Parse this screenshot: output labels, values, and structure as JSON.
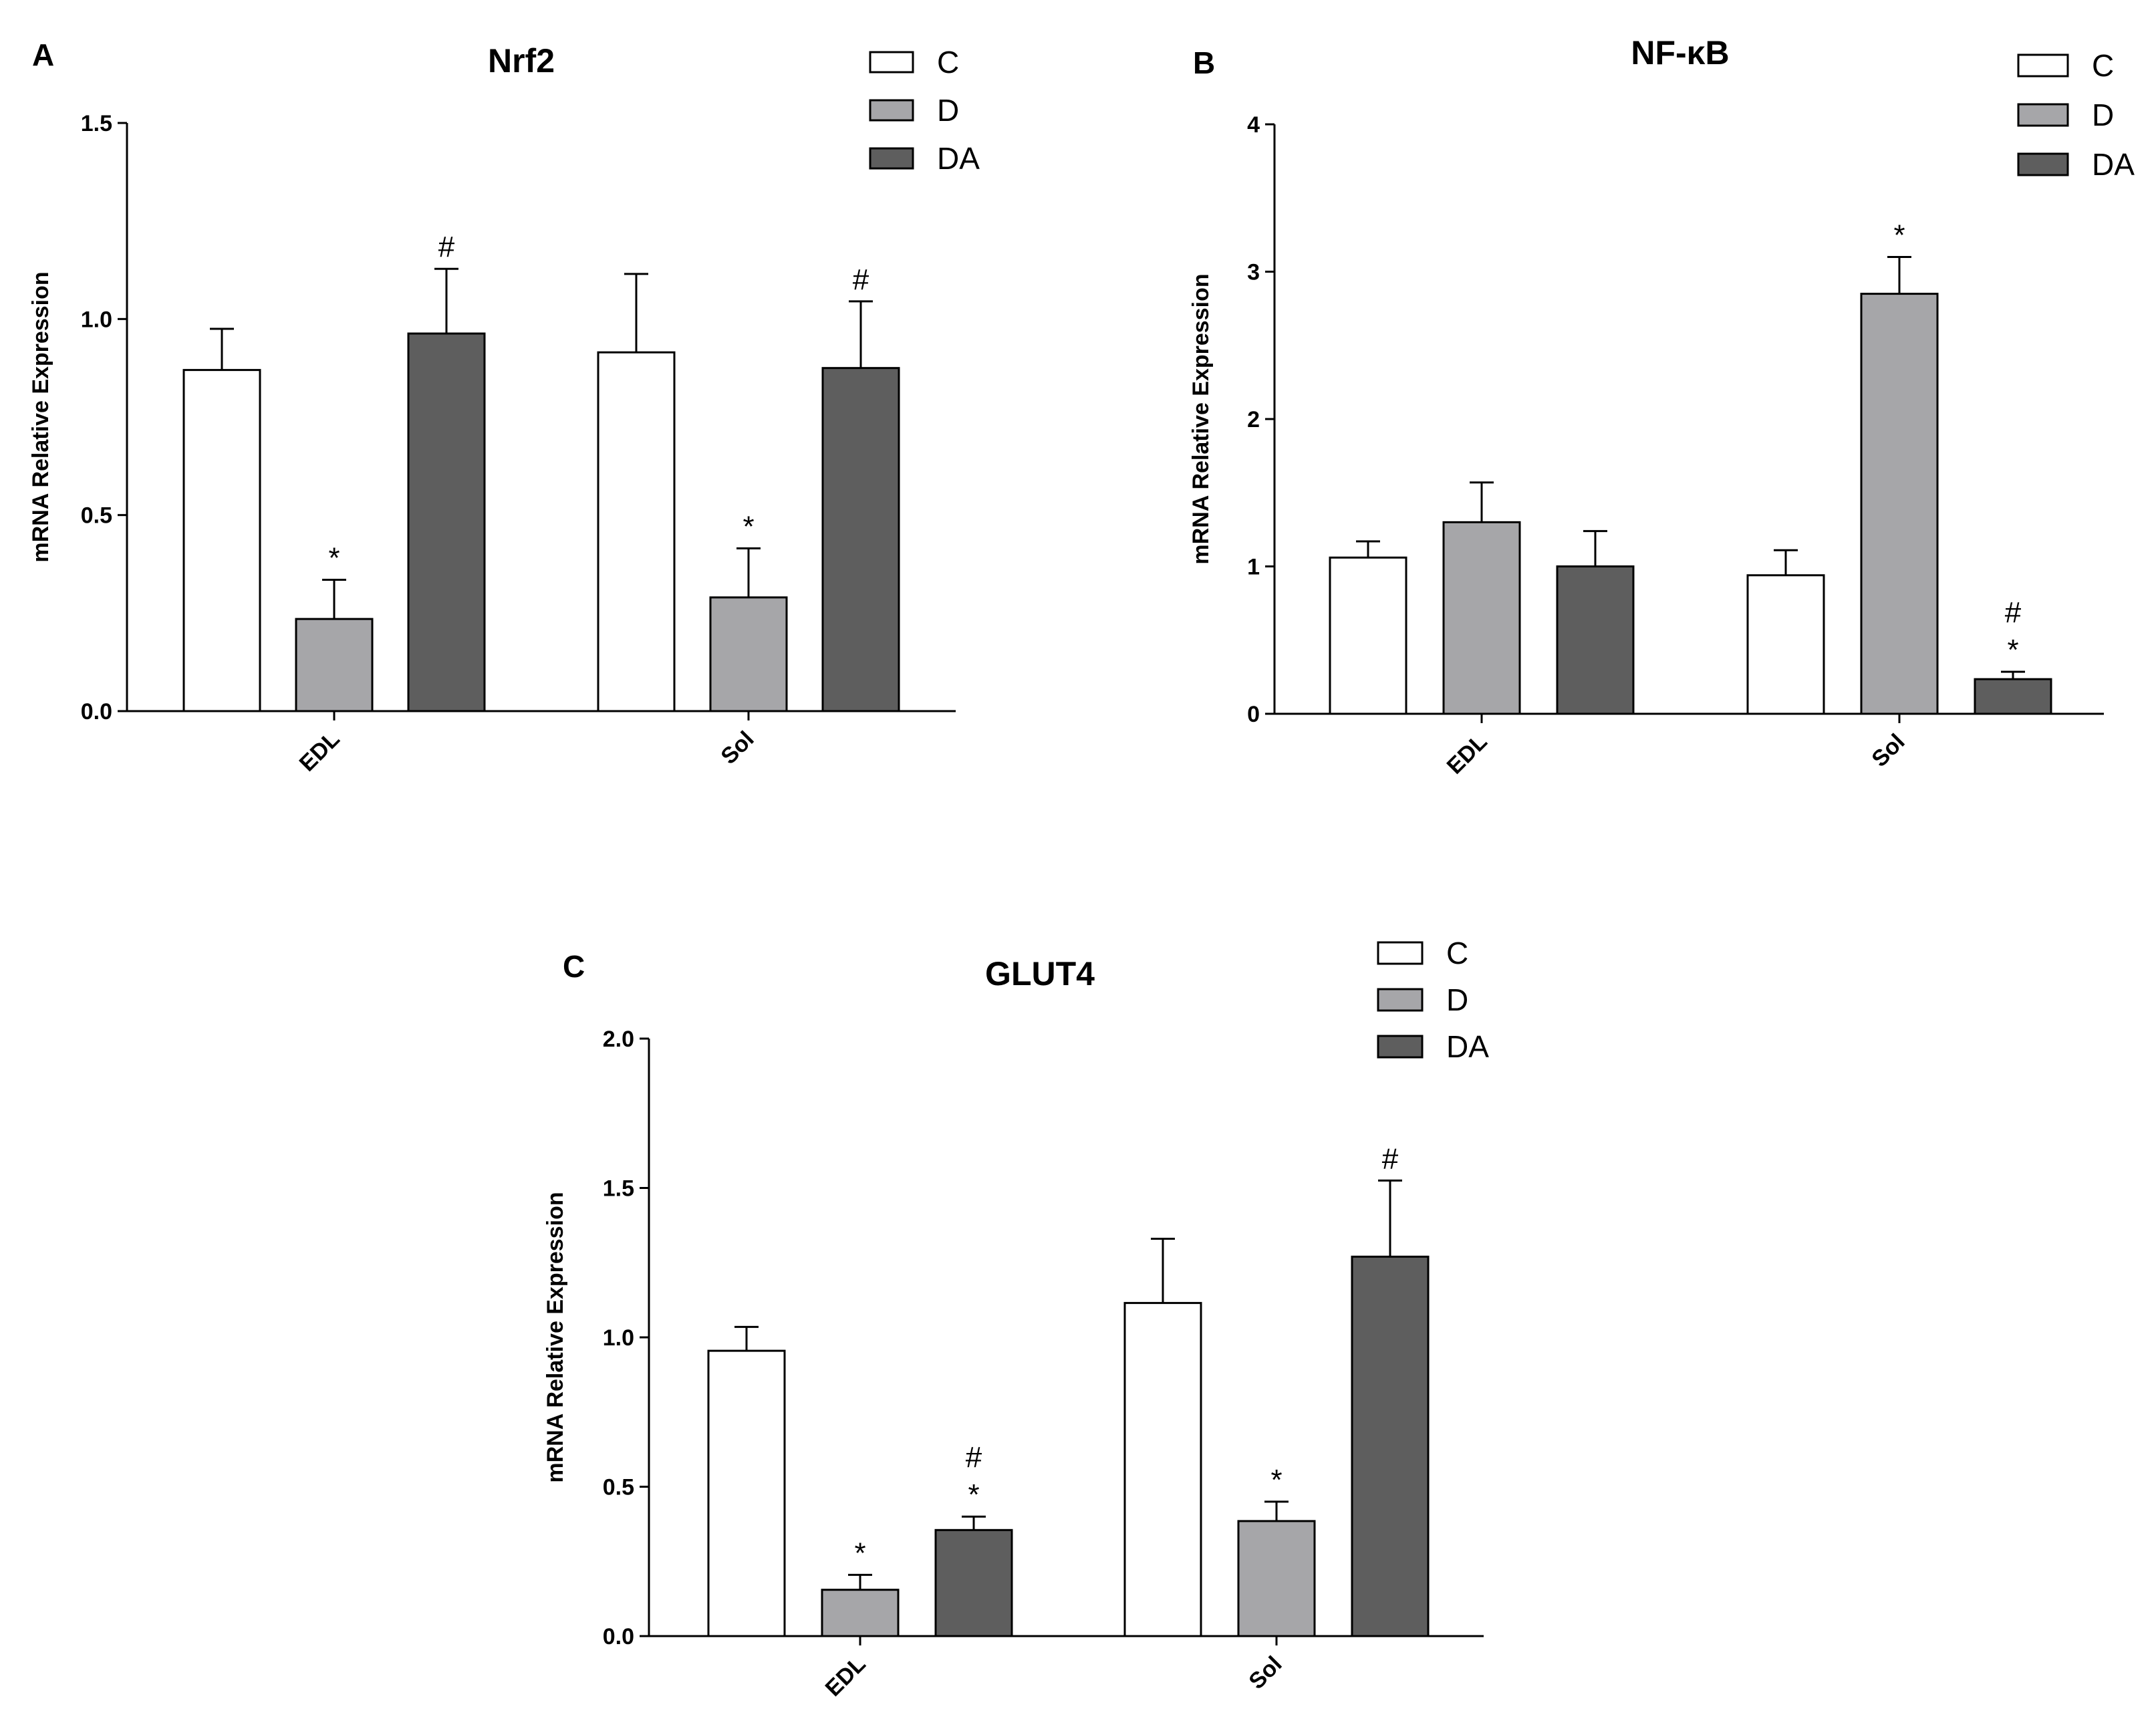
{
  "colors": {
    "C": "#ffffff",
    "D": "#a6a6a9",
    "DA": "#5e5e5e",
    "axis": "#000000"
  },
  "chart_data": [
    {
      "panel": "A",
      "type": "bar",
      "title": "Nrf2",
      "ylabel": "mRNA Relative Expression",
      "xlabel": "",
      "categories": [
        "EDL",
        "Sol"
      ],
      "ylim": [
        0,
        1.5
      ],
      "yticks": [
        0,
        0.5,
        1.0,
        1.5
      ],
      "ytick_labels": [
        "0.0",
        "0.5",
        "1.0",
        "1.5"
      ],
      "legend": [
        "C",
        "D",
        "DA"
      ],
      "series": [
        {
          "name": "C",
          "values": [
            0.87,
            0.915
          ],
          "errors": [
            0.105,
            0.2
          ],
          "annotations": [
            [],
            []
          ]
        },
        {
          "name": "D",
          "values": [
            0.235,
            0.29
          ],
          "errors": [
            0.1,
            0.125
          ],
          "annotations": [
            [
              "*"
            ],
            [
              "*"
            ]
          ]
        },
        {
          "name": "DA",
          "values": [
            0.963,
            0.875
          ],
          "errors": [
            0.165,
            0.17
          ],
          "annotations": [
            [
              "#"
            ],
            [
              "#"
            ]
          ]
        }
      ]
    },
    {
      "panel": "B",
      "type": "bar",
      "title": "NF-κB",
      "ylabel": "mRNA Relative Expression",
      "xlabel": "",
      "categories": [
        "EDL",
        "Sol"
      ],
      "ylim": [
        0,
        4
      ],
      "yticks": [
        0,
        1,
        2,
        3,
        4
      ],
      "ytick_labels": [
        "0",
        "1",
        "2",
        "3",
        "4"
      ],
      "legend": [
        "C",
        "D",
        "DA"
      ],
      "series": [
        {
          "name": "C",
          "values": [
            1.06,
            0.94
          ],
          "errors": [
            0.11,
            0.17
          ],
          "annotations": [
            [],
            []
          ]
        },
        {
          "name": "D",
          "values": [
            1.3,
            2.85
          ],
          "errors": [
            0.27,
            0.25
          ],
          "annotations": [
            [],
            [
              "*"
            ]
          ]
        },
        {
          "name": "DA",
          "values": [
            1.0,
            0.235
          ],
          "errors": [
            0.24,
            0.05
          ],
          "annotations": [
            [],
            [
              "*",
              "#"
            ]
          ]
        }
      ]
    },
    {
      "panel": "C",
      "type": "bar",
      "title": "GLUT4",
      "ylabel": "mRNA Relative Expression",
      "xlabel": "",
      "categories": [
        "EDL",
        "Sol"
      ],
      "ylim": [
        0,
        2.0
      ],
      "yticks": [
        0,
        0.5,
        1.0,
        1.5,
        2.0
      ],
      "ytick_labels": [
        "0.0",
        "0.5",
        "1.0",
        "1.5",
        "2.0"
      ],
      "legend": [
        "C",
        "D",
        "DA"
      ],
      "series": [
        {
          "name": "C",
          "values": [
            0.955,
            1.115
          ],
          "errors": [
            0.08,
            0.215
          ],
          "annotations": [
            [],
            []
          ]
        },
        {
          "name": "D",
          "values": [
            0.155,
            0.385
          ],
          "errors": [
            0.05,
            0.065
          ],
          "annotations": [
            [
              "*"
            ],
            [
              "*"
            ]
          ]
        },
        {
          "name": "DA",
          "values": [
            0.355,
            1.27
          ],
          "errors": [
            0.045,
            0.255
          ],
          "annotations": [
            [
              "*",
              "#"
            ],
            [
              "#"
            ]
          ]
        }
      ]
    }
  ]
}
